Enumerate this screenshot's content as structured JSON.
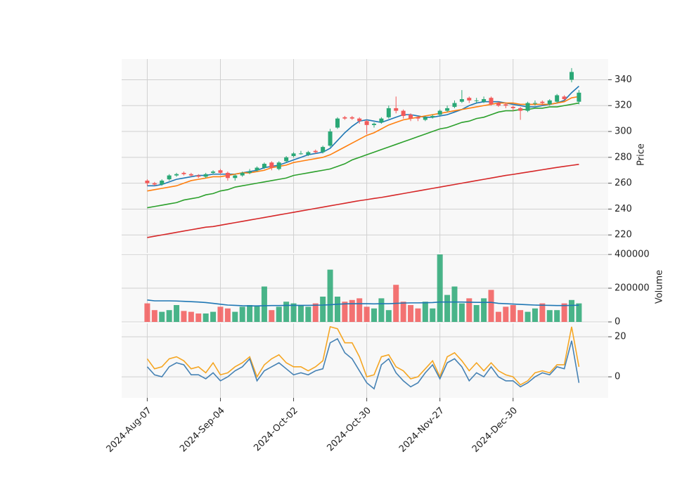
{
  "chart_data": {
    "type": "candlestick",
    "xlim": [
      -7,
      126
    ],
    "x": [
      0,
      2,
      4,
      6,
      8,
      10,
      12,
      14,
      16,
      18,
      20,
      22,
      24,
      26,
      28,
      30,
      32,
      34,
      36,
      38,
      40,
      42,
      44,
      46,
      48,
      50,
      52,
      54,
      56,
      58,
      60,
      62,
      64,
      66,
      68,
      70,
      72,
      74,
      76,
      78,
      80,
      82,
      84,
      86,
      88,
      90,
      92,
      94,
      96,
      98,
      100,
      102,
      104,
      106,
      108,
      110,
      112,
      114,
      116,
      118
    ],
    "xticks": [
      {
        "value": 0,
        "label": "2024-Aug-07"
      },
      {
        "value": 20,
        "label": "2024-Sep-04"
      },
      {
        "value": 40,
        "label": "2024-Oct-02"
      },
      {
        "value": 60,
        "label": "2024-Oct-30"
      },
      {
        "value": 80,
        "label": "2024-Nov-27"
      },
      {
        "value": 100,
        "label": "2024-Dec-30"
      }
    ],
    "grid": true,
    "up_color": "#2aa876",
    "down_color": "#f25a5a",
    "price": {
      "label": "Price",
      "ylim": [
        206,
        356
      ],
      "yticks": [
        220,
        240,
        260,
        280,
        300,
        320,
        340
      ],
      "open": [
        262,
        260,
        259,
        263,
        266,
        268,
        267,
        266,
        265,
        268,
        270,
        268,
        264,
        266,
        268,
        270,
        272,
        276,
        271,
        277,
        281,
        283,
        282,
        285,
        284,
        289,
        303,
        311,
        311,
        310,
        308,
        305,
        307,
        311,
        318,
        316,
        313,
        311,
        309,
        311,
        313,
        316,
        319,
        323,
        326,
        324,
        323,
        326,
        322,
        321,
        319,
        318,
        316,
        322,
        323,
        321,
        323,
        327,
        340,
        323
      ],
      "high": [
        263,
        261,
        263,
        267,
        268,
        269,
        268,
        267,
        268,
        270,
        271,
        269,
        267,
        269,
        271,
        273,
        276,
        277,
        277,
        281,
        284,
        285,
        285,
        286,
        289,
        302,
        311,
        312,
        312,
        311,
        309,
        307,
        311,
        320,
        327,
        317,
        314,
        312,
        312,
        313,
        317,
        320,
        324,
        332,
        327,
        326,
        327,
        327,
        323,
        322,
        320,
        319,
        323,
        324,
        324,
        325,
        329,
        328,
        349,
        332
      ],
      "low": [
        258,
        258,
        258,
        262,
        265,
        266,
        265,
        264,
        264,
        267,
        267,
        262,
        262,
        265,
        267,
        269,
        271,
        270,
        270,
        276,
        280,
        282,
        281,
        283,
        283,
        288,
        302,
        309,
        309,
        306,
        298,
        303,
        306,
        310,
        314,
        310,
        308,
        308,
        308,
        310,
        312,
        315,
        318,
        322,
        322,
        322,
        322,
        320,
        319,
        318,
        316,
        309,
        315,
        320,
        320,
        320,
        322,
        324,
        338,
        321
      ],
      "close": [
        260,
        259,
        262,
        266,
        267,
        267,
        266,
        265,
        267,
        269,
        268,
        264,
        266,
        268,
        269,
        272,
        275,
        272,
        276,
        280,
        283,
        283,
        284,
        284,
        288,
        300,
        310,
        310,
        310,
        308,
        305,
        306,
        310,
        318,
        316,
        312,
        310,
        310,
        311,
        312,
        316,
        318,
        322,
        325,
        324,
        324,
        325,
        321,
        320,
        320,
        318,
        316,
        322,
        322,
        322,
        324,
        328,
        325,
        346,
        330
      ],
      "series": [
        {
          "color": "#1f77b4",
          "values": [
            258,
            258,
            259,
            261,
            263,
            264,
            265,
            266,
            266,
            267,
            267,
            267,
            267,
            268,
            269,
            270,
            272,
            273,
            274,
            276,
            278,
            280,
            282,
            283,
            284,
            287,
            293,
            299,
            304,
            308,
            309,
            308,
            307,
            309,
            311,
            313,
            313,
            312,
            311,
            311,
            312,
            313,
            315,
            317,
            320,
            322,
            323,
            323,
            323,
            322,
            321,
            320,
            319,
            319,
            320,
            321,
            322,
            324,
            330,
            335
          ]
        },
        {
          "color": "#ff7f0e",
          "values": [
            254,
            255,
            256,
            257,
            258,
            260,
            262,
            263,
            264,
            265,
            265,
            266,
            267,
            268,
            268,
            269,
            270,
            272,
            273,
            274,
            276,
            277,
            278,
            279,
            280,
            282,
            285,
            288,
            291,
            294,
            297,
            299,
            302,
            305,
            307,
            309,
            310,
            311,
            312,
            313,
            314,
            315,
            316,
            317,
            318,
            319,
            320,
            321,
            322,
            322,
            322,
            321,
            321,
            321,
            321,
            321,
            322,
            323,
            326,
            327
          ]
        },
        {
          "color": "#2ca02c",
          "values": [
            241,
            242,
            243,
            244,
            245,
            247,
            248,
            249,
            251,
            252,
            254,
            255,
            257,
            258,
            259,
            260,
            261,
            262,
            263,
            264,
            266,
            267,
            268,
            269,
            270,
            271,
            273,
            275,
            278,
            280,
            282,
            284,
            286,
            288,
            290,
            292,
            294,
            296,
            298,
            300,
            302,
            303,
            305,
            307,
            308,
            310,
            311,
            313,
            315,
            316,
            316,
            317,
            317,
            318,
            318,
            319,
            319,
            320,
            321,
            322
          ]
        },
        {
          "color": "#d62728",
          "values": [
            218,
            219,
            220,
            221,
            222,
            223,
            224,
            225,
            226,
            226.5,
            227.5,
            228.5,
            229.5,
            230.5,
            231.5,
            232.5,
            233.5,
            234.5,
            235.5,
            236.5,
            237.5,
            238.5,
            239.5,
            240.5,
            241.5,
            242.5,
            243.5,
            244.5,
            245.5,
            246.5,
            247.3,
            248.2,
            249,
            250,
            251,
            252,
            253,
            254,
            255,
            256,
            257,
            258,
            259,
            260,
            261,
            262,
            263,
            264,
            265,
            266,
            266.8,
            267.7,
            268.6,
            269.5,
            270.4,
            271.3,
            272.2,
            273,
            273.8,
            274.6
          ]
        }
      ]
    },
    "volume": {
      "label": "Volume",
      "ylim": [
        0,
        400000
      ],
      "yticks": [
        0,
        200000,
        400000
      ],
      "values": [
        110000,
        70000,
        60000,
        70000,
        100000,
        65000,
        60000,
        50000,
        50000,
        60000,
        90000,
        80000,
        60000,
        90000,
        100000,
        95000,
        210000,
        70000,
        90000,
        120000,
        110000,
        100000,
        90000,
        110000,
        150000,
        310000,
        150000,
        120000,
        130000,
        140000,
        90000,
        80000,
        140000,
        70000,
        220000,
        120000,
        100000,
        80000,
        120000,
        80000,
        400000,
        160000,
        210000,
        110000,
        140000,
        100000,
        140000,
        190000,
        60000,
        90000,
        100000,
        70000,
        60000,
        80000,
        110000,
        70000,
        70000,
        110000,
        130000,
        110000
      ],
      "ma": {
        "color": "#1f77b4",
        "values": [
          130000,
          125000,
          125000,
          125000,
          124000,
          122000,
          120000,
          118000,
          115000,
          110000,
          105000,
          100000,
          98000,
          96000,
          95000,
          95000,
          96000,
          97000,
          97000,
          98000,
          98000,
          98000,
          98000,
          99000,
          100000,
          102000,
          105000,
          107000,
          108000,
          108000,
          108000,
          107000,
          108000,
          108000,
          110000,
          112000,
          113000,
          113000,
          114000,
          115000,
          118000,
          118000,
          118000,
          118000,
          117000,
          116000,
          116000,
          116000,
          110000,
          108000,
          106000,
          104000,
          102000,
          100000,
          99000,
          98000,
          97000,
          97000,
          98000,
          99000
        ]
      }
    },
    "oscillator": {
      "ylim": [
        -10.5,
        26.7
      ],
      "yticks": [
        0,
        20
      ],
      "series": [
        {
          "color": "#f5a623",
          "values": [
            9,
            4,
            5,
            9,
            10,
            8,
            4,
            5,
            2,
            7,
            1,
            2,
            5,
            7,
            10,
            0,
            6,
            9,
            11,
            7,
            5,
            5,
            3,
            5,
            8,
            25,
            24,
            17,
            17,
            10,
            0,
            1,
            10,
            11,
            5,
            3,
            -1,
            0,
            4,
            8,
            0,
            10,
            12,
            8,
            3,
            7,
            3,
            7,
            3,
            1,
            0,
            -4,
            -2,
            2,
            3,
            2,
            6,
            6,
            25,
            5
          ]
        },
        {
          "color": "#4682b4",
          "values": [
            5,
            1,
            0,
            5,
            7,
            6,
            1,
            1,
            -1,
            2,
            -2,
            0,
            3,
            5,
            9,
            -2,
            3,
            5,
            7,
            4,
            1,
            2,
            1,
            3,
            4,
            17,
            19,
            12,
            9,
            3,
            -3,
            -6,
            6,
            9,
            2,
            -2,
            -5,
            -3,
            2,
            6,
            -1,
            7,
            9,
            5,
            -2,
            2,
            0,
            5,
            0,
            -2,
            -2,
            -5,
            -3,
            0,
            2,
            1,
            5,
            4,
            18,
            -3
          ]
        }
      ]
    }
  }
}
